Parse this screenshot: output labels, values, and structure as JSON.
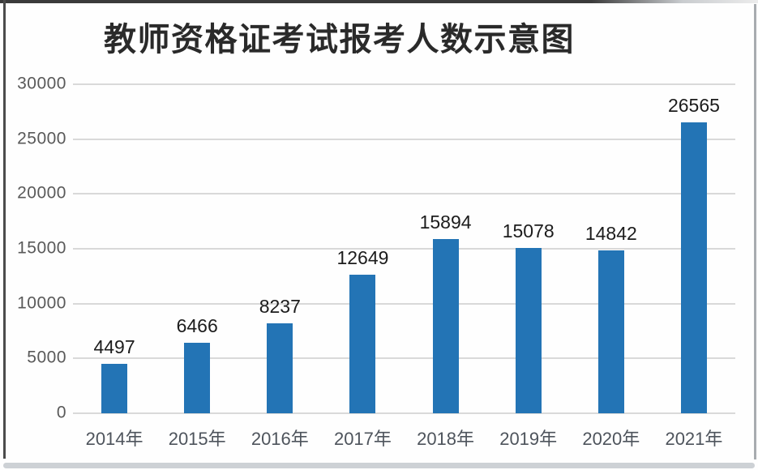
{
  "title": "教师资格证考试报考人数示意图",
  "colors": {
    "bar": "#2374b5",
    "gridline": "#d9d9d9",
    "y_tick_text": "#595959",
    "x_label_text": "#4e545c",
    "value_label_text": "#1c1c1c",
    "title_text": "#2a2a2a",
    "background": "#fefefe"
  },
  "chart_data": {
    "type": "bar",
    "title": "教师资格证考试报考人数示意图",
    "categories": [
      "2014年",
      "2015年",
      "2016年",
      "2017年",
      "2018年",
      "2019年",
      "2020年",
      "2021年"
    ],
    "values": [
      4497,
      6466,
      8237,
      12649,
      15894,
      15078,
      14842,
      26565
    ],
    "xlabel": "",
    "ylabel": "",
    "ylim": [
      0,
      30000
    ],
    "yticks": [
      0,
      5000,
      10000,
      15000,
      20000,
      25000,
      30000
    ],
    "grid": "horizontal",
    "legend": "none",
    "bar_labels_shown": true
  }
}
